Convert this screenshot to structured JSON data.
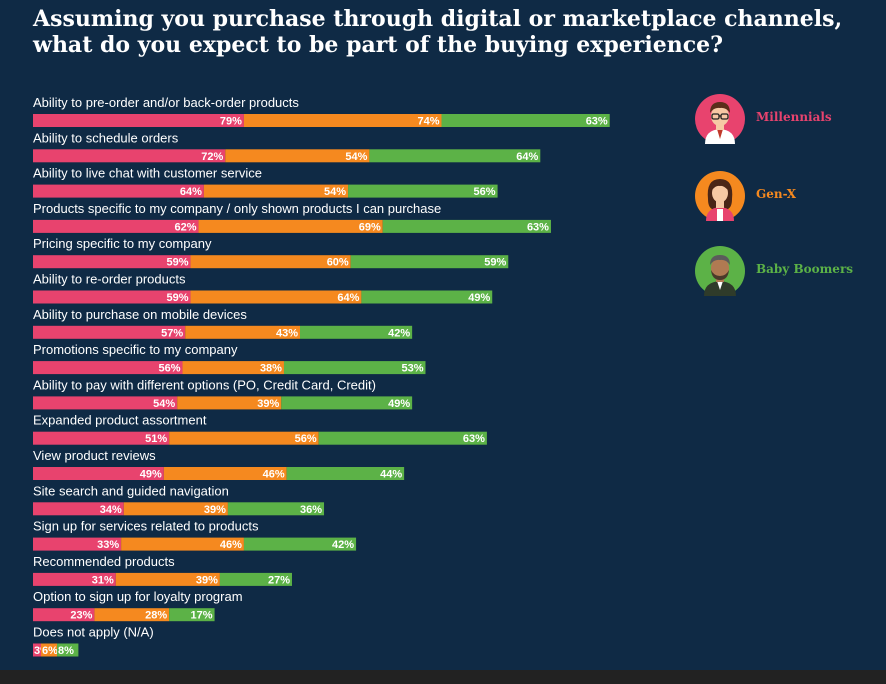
{
  "title": "Assuming you purchase through digital or marketplace channels, what do you expect to be part of the buying experience?",
  "colors": {
    "background": "#0f2a45",
    "Millennials": "#e8436e",
    "Gen-X": "#f5891f",
    "Baby Boomers": "#5cb247"
  },
  "legend": [
    {
      "name": "Millennials",
      "icon": "millennial-avatar-icon"
    },
    {
      "name": "Gen-X",
      "icon": "genx-avatar-icon"
    },
    {
      "name": "Baby Boomers",
      "icon": "baby-boomer-avatar-icon"
    }
  ],
  "chart_data": {
    "type": "bar",
    "stacked": true,
    "orientation": "horizontal",
    "title": "Assuming you purchase through digital or marketplace channels, what do you expect to be part of the buying experience?",
    "legend_position": "right",
    "categories": [
      "Ability to pre-order and/or back-order products",
      "Ability to schedule orders",
      "Ability to live chat with customer service",
      "Products specific to my company / only shown products I can purchase",
      "Pricing specific to my company",
      "Ability to re-order products",
      "Ability to purchase on mobile devices",
      "Promotions specific to my company",
      "Ability to pay with different options (PO, Credit Card, Credit)",
      "Expanded product assortment",
      "View product reviews",
      "Site search and guided navigation",
      "Sign up for services related to products",
      "Recommended products",
      "Option to sign up for loyalty program",
      "Does not apply (N/A)"
    ],
    "series": [
      {
        "name": "Millennials",
        "values": [
          79,
          72,
          64,
          62,
          59,
          59,
          57,
          56,
          54,
          51,
          49,
          34,
          33,
          31,
          23,
          3
        ]
      },
      {
        "name": "Gen-X",
        "values": [
          74,
          54,
          54,
          69,
          60,
          64,
          43,
          38,
          39,
          56,
          46,
          39,
          46,
          39,
          28,
          6
        ]
      },
      {
        "name": "Baby Boomers",
        "values": [
          63,
          64,
          56,
          63,
          59,
          49,
          42,
          53,
          49,
          63,
          44,
          36,
          42,
          27,
          17,
          8
        ]
      }
    ],
    "value_suffix": "%"
  }
}
